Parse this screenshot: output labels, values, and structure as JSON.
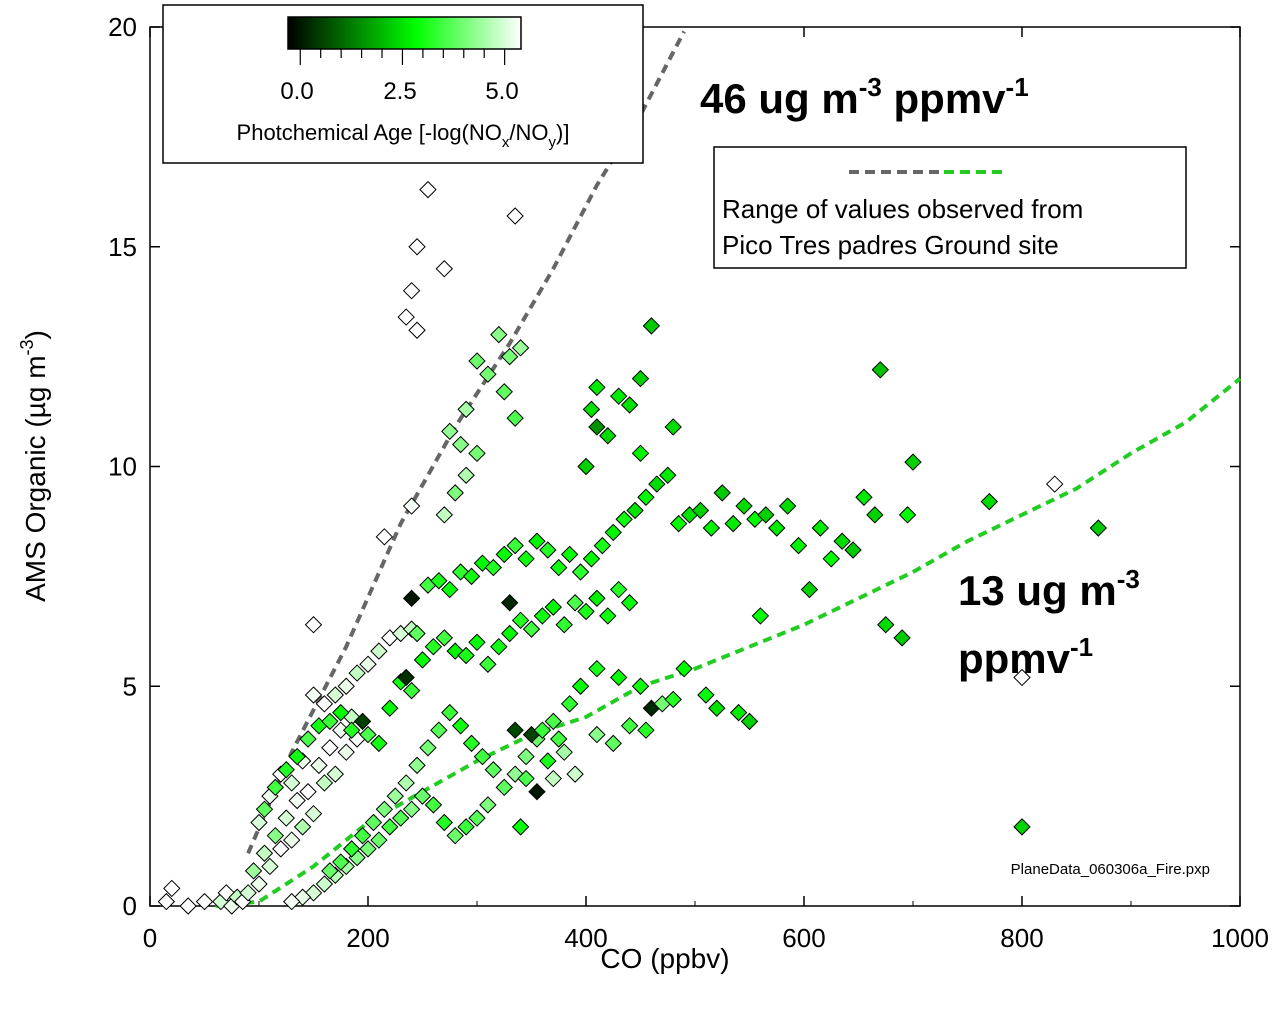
{
  "chart_data": {
    "type": "scatter",
    "xlabel": "CO (ppbv)",
    "ylabel": "AMS Organic (µg m-3)",
    "ylabel_parts": {
      "base": "AMS Organic (µg m",
      "sup": "-3",
      "end": ")"
    },
    "xlim": [
      0,
      1000
    ],
    "ylim": [
      0,
      20
    ],
    "x_ticks": [
      "0",
      "200",
      "400",
      "600",
      "800",
      "1000"
    ],
    "y_ticks": [
      "0",
      "5",
      "10",
      "15",
      "20"
    ],
    "grid": false,
    "colorbar": {
      "title": "Photchemical Age [-log(NOx/NOy)]",
      "title_parts": {
        "a": "Photchemical Age [-log(NO",
        "sub1": "x",
        "b": "/NO",
        "sub2": "y",
        "c": ")]"
      },
      "ticks": [
        "0.0",
        "2.5",
        "5.0"
      ],
      "range": [
        -0.3,
        5.4
      ],
      "colors": [
        "#000000",
        "#00a000",
        "#00ff00",
        "#ffffff"
      ]
    },
    "legend": {
      "placement": "top-right",
      "line1": "Range of values observed from",
      "line2": "Pico Tres padres Ground site"
    },
    "annotations": {
      "upper": {
        "main": "46 ug m",
        "sup1": "-3",
        "mid": " ppmv",
        "sup2": "-1"
      },
      "lower_line1": {
        "main": "13 ug m",
        "sup": "-3"
      },
      "lower_line2": {
        "main": "ppmv",
        "sup": "-1"
      },
      "file_note": "PlaneData_060306a_Fire.pxp"
    },
    "lines": [
      {
        "name": "upper range",
        "color": "#666666",
        "x": [
          90,
          130,
          180,
          230,
          280,
          330,
          370,
          410,
          450,
          490
        ],
        "y": [
          1.2,
          3.5,
          5.9,
          8.7,
          10.9,
          12.8,
          14.5,
          16.4,
          18.0,
          19.9
        ]
      },
      {
        "name": "lower range",
        "color": "#22cc22",
        "x": [
          60,
          100,
          150,
          200,
          250,
          300,
          350,
          400,
          450,
          500,
          550,
          600,
          650,
          700,
          750,
          800,
          850,
          900,
          950,
          1000
        ],
        "y": [
          0.0,
          0.1,
          0.9,
          1.9,
          2.6,
          3.3,
          3.9,
          4.3,
          5.0,
          5.4,
          5.9,
          6.4,
          7.0,
          7.6,
          8.3,
          8.9,
          9.5,
          10.3,
          11.0,
          12.0
        ]
      }
    ],
    "points": [
      [
        15,
        0.1,
        5.4
      ],
      [
        20,
        0.4,
        5.4
      ],
      [
        35,
        0.0,
        5.4
      ],
      [
        50,
        0.1,
        5.4
      ],
      [
        65,
        0.1,
        5.0
      ],
      [
        70,
        0.3,
        5.4
      ],
      [
        75,
        0.0,
        5.2
      ],
      [
        80,
        0.2,
        4.8
      ],
      [
        85,
        0.1,
        5.4
      ],
      [
        90,
        0.3,
        5.0
      ],
      [
        95,
        0.8,
        4.4
      ],
      [
        100,
        0.5,
        5.2
      ],
      [
        105,
        1.2,
        4.8
      ],
      [
        110,
        0.9,
        5.0
      ],
      [
        115,
        1.6,
        4.2
      ],
      [
        120,
        1.3,
        5.4
      ],
      [
        125,
        2.0,
        5.0
      ],
      [
        130,
        1.5,
        5.2
      ],
      [
        135,
        2.4,
        5.3
      ],
      [
        140,
        1.8,
        4.6
      ],
      [
        145,
        2.6,
        5.4
      ],
      [
        150,
        2.1,
        5.0
      ],
      [
        155,
        3.2,
        5.2
      ],
      [
        160,
        2.8,
        4.8
      ],
      [
        165,
        3.6,
        5.4
      ],
      [
        170,
        3.0,
        5.0
      ],
      [
        175,
        4.0,
        5.3
      ],
      [
        180,
        3.5,
        5.2
      ],
      [
        185,
        4.3,
        4.8
      ],
      [
        190,
        3.8,
        5.4
      ],
      [
        100,
        1.9,
        5.0
      ],
      [
        110,
        2.5,
        5.2
      ],
      [
        120,
        3.0,
        5.4
      ],
      [
        130,
        2.8,
        5.0
      ],
      [
        140,
        3.3,
        5.2
      ],
      [
        150,
        4.8,
        5.3
      ],
      [
        160,
        4.6,
        5.4
      ],
      [
        170,
        4.8,
        5.0
      ],
      [
        180,
        5.0,
        5.2
      ],
      [
        190,
        5.3,
        4.8
      ],
      [
        200,
        5.5,
        5.2
      ],
      [
        210,
        5.8,
        4.9
      ],
      [
        220,
        6.1,
        5.4
      ],
      [
        230,
        6.2,
        5.0
      ],
      [
        240,
        6.3,
        4.8
      ],
      [
        150,
        6.4,
        5.4
      ],
      [
        215,
        8.4,
        5.4
      ],
      [
        240,
        9.1,
        5.3
      ],
      [
        235,
        13.4,
        5.4
      ],
      [
        240,
        14.0,
        5.4
      ],
      [
        245,
        15.0,
        5.4
      ],
      [
        255,
        16.3,
        5.4
      ],
      [
        270,
        14.5,
        5.4
      ],
      [
        245,
        13.1,
        5.4
      ],
      [
        105,
        2.2,
        3.8
      ],
      [
        115,
        2.7,
        3.5
      ],
      [
        125,
        3.1,
        3.2
      ],
      [
        135,
        3.4,
        3.0
      ],
      [
        145,
        3.8,
        3.6
      ],
      [
        155,
        4.1,
        3.0
      ],
      [
        165,
        4.2,
        3.4
      ],
      [
        175,
        4.4,
        2.8
      ],
      [
        185,
        4.0,
        3.2
      ],
      [
        195,
        4.2,
        0.5
      ],
      [
        200,
        3.9,
        3.6
      ],
      [
        210,
        3.7,
        3.0
      ],
      [
        220,
        4.5,
        2.8
      ],
      [
        230,
        5.1,
        3.0
      ],
      [
        235,
        5.2,
        0.3
      ],
      [
        240,
        4.9,
        3.4
      ],
      [
        250,
        5.6,
        2.9
      ],
      [
        260,
        5.9,
        3.2
      ],
      [
        270,
        6.1,
        3.5
      ],
      [
        280,
        5.8,
        2.7
      ],
      [
        290,
        5.7,
        3.1
      ],
      [
        300,
        6.0,
        2.9
      ],
      [
        310,
        5.5,
        3.4
      ],
      [
        320,
        5.9,
        3.0
      ],
      [
        330,
        6.2,
        2.8
      ],
      [
        340,
        6.5,
        3.2
      ],
      [
        350,
        6.3,
        3.5
      ],
      [
        360,
        6.6,
        3.0
      ],
      [
        370,
        6.8,
        2.8
      ],
      [
        380,
        6.4,
        3.3
      ],
      [
        390,
        6.9,
        3.6
      ],
      [
        400,
        6.7,
        3.1
      ],
      [
        410,
        7.0,
        2.7
      ],
      [
        420,
        6.6,
        3.0
      ],
      [
        430,
        7.2,
        3.2
      ],
      [
        440,
        6.9,
        2.9
      ],
      [
        240,
        7.0,
        0.0
      ],
      [
        330,
        6.9,
        0.2
      ],
      [
        245,
        6.2,
        3.8
      ],
      [
        255,
        7.3,
        3.5
      ],
      [
        265,
        7.4,
        3.1
      ],
      [
        275,
        7.2,
        2.9
      ],
      [
        285,
        7.6,
        3.3
      ],
      [
        295,
        7.5,
        3.0
      ],
      [
        305,
        7.8,
        2.8
      ],
      [
        315,
        7.7,
        3.2
      ],
      [
        325,
        8.0,
        2.9
      ],
      [
        335,
        8.2,
        3.4
      ],
      [
        345,
        7.9,
        3.0
      ],
      [
        355,
        8.3,
        2.7
      ],
      [
        365,
        8.1,
        3.2
      ],
      [
        375,
        7.7,
        3.0
      ],
      [
        385,
        8.0,
        2.9
      ],
      [
        395,
        7.6,
        3.3
      ],
      [
        405,
        7.9,
        2.8
      ],
      [
        415,
        8.2,
        3.1
      ],
      [
        425,
        8.5,
        2.7
      ],
      [
        435,
        8.8,
        3.0
      ],
      [
        445,
        9.0,
        2.5
      ],
      [
        455,
        9.3,
        2.8
      ],
      [
        465,
        9.6,
        2.4
      ],
      [
        475,
        9.8,
        2.6
      ],
      [
        485,
        8.7,
        2.8
      ],
      [
        495,
        8.9,
        2.5
      ],
      [
        505,
        9.0,
        2.3
      ],
      [
        515,
        8.6,
        2.7
      ],
      [
        525,
        9.4,
        2.2
      ],
      [
        535,
        8.7,
        2.6
      ],
      [
        545,
        9.1,
        2.4
      ],
      [
        555,
        8.8,
        2.8
      ],
      [
        565,
        8.9,
        2.3
      ],
      [
        575,
        8.6,
        2.6
      ],
      [
        585,
        9.1,
        2.4
      ],
      [
        595,
        8.2,
        2.7
      ],
      [
        605,
        7.2,
        2.3
      ],
      [
        615,
        8.6,
        2.6
      ],
      [
        625,
        7.9,
        2.8
      ],
      [
        635,
        8.3,
        2.4
      ],
      [
        645,
        8.1,
        2.2
      ],
      [
        655,
        9.3,
        2.6
      ],
      [
        665,
        8.9,
        2.3
      ],
      [
        670,
        12.2,
        2.1
      ],
      [
        675,
        6.4,
        2.4
      ],
      [
        690,
        6.1,
        2.2
      ],
      [
        695,
        8.9,
        2.8
      ],
      [
        700,
        10.1,
        2.3
      ],
      [
        770,
        9.2,
        2.4
      ],
      [
        800,
        5.2,
        5.4
      ],
      [
        800,
        1.8,
        2.3
      ],
      [
        830,
        9.6,
        5.4
      ],
      [
        870,
        8.6,
        2.2
      ],
      [
        460,
        13.2,
        2.2
      ],
      [
        405,
        11.3,
        2.5
      ],
      [
        410,
        11.8,
        2.6
      ],
      [
        420,
        10.7,
        2.4
      ],
      [
        440,
        11.4,
        2.5
      ],
      [
        450,
        12.0,
        2.3
      ],
      [
        480,
        10.9,
        2.4
      ],
      [
        410,
        10.9,
        1.5
      ],
      [
        430,
        11.6,
        2.6
      ],
      [
        400,
        10.0,
        2.3
      ],
      [
        450,
        10.3,
        2.7
      ],
      [
        320,
        13.0,
        4.2
      ],
      [
        330,
        12.5,
        4.0
      ],
      [
        340,
        12.7,
        4.4
      ],
      [
        325,
        11.7,
        3.8
      ],
      [
        335,
        11.1,
        3.6
      ],
      [
        310,
        12.1,
        4.0
      ],
      [
        300,
        12.4,
        3.9
      ],
      [
        290,
        11.3,
        4.5
      ],
      [
        285,
        10.5,
        4.2
      ],
      [
        300,
        10.3,
        4.0
      ],
      [
        275,
        10.8,
        4.3
      ],
      [
        290,
        9.8,
        4.6
      ],
      [
        280,
        9.4,
        4.1
      ],
      [
        270,
        8.9,
        4.8
      ],
      [
        335,
        15.7,
        5.4
      ],
      [
        370,
        2.9,
        4.8
      ],
      [
        380,
        3.5,
        4.5
      ],
      [
        390,
        3.0,
        4.9
      ],
      [
        410,
        3.9,
        4.2
      ],
      [
        425,
        3.7,
        3.8
      ],
      [
        440,
        4.1,
        3.5
      ],
      [
        455,
        4.0,
        3.2
      ],
      [
        460,
        4.5,
        0.2
      ],
      [
        470,
        4.6,
        4.0
      ],
      [
        480,
        4.7,
        3.2
      ],
      [
        490,
        5.4,
        2.8
      ],
      [
        510,
        4.8,
        2.9
      ],
      [
        520,
        4.5,
        2.5
      ],
      [
        540,
        4.4,
        2.6
      ],
      [
        550,
        4.2,
        2.3
      ],
      [
        560,
        6.6,
        2.9
      ],
      [
        450,
        5.0,
        3.0
      ],
      [
        430,
        5.2,
        2.8
      ],
      [
        410,
        5.4,
        3.1
      ],
      [
        395,
        5.0,
        2.9
      ],
      [
        385,
        4.6,
        3.3
      ],
      [
        370,
        4.2,
        3.6
      ],
      [
        355,
        3.8,
        3.9
      ],
      [
        345,
        3.4,
        4.1
      ],
      [
        335,
        3.0,
        4.3
      ],
      [
        325,
        2.7,
        3.8
      ],
      [
        310,
        2.3,
        4.1
      ],
      [
        300,
        2.0,
        3.7
      ],
      [
        290,
        1.8,
        3.4
      ],
      [
        280,
        1.6,
        3.9
      ],
      [
        270,
        1.9,
        3.2
      ],
      [
        260,
        2.3,
        3.5
      ],
      [
        250,
        2.5,
        3.9
      ],
      [
        240,
        2.2,
        4.2
      ],
      [
        230,
        2.0,
        3.7
      ],
      [
        220,
        1.8,
        3.5
      ],
      [
        210,
        1.5,
        3.9
      ],
      [
        200,
        1.3,
        4.0
      ],
      [
        190,
        1.1,
        4.2
      ],
      [
        180,
        0.9,
        4.5
      ],
      [
        170,
        0.7,
        4.7
      ],
      [
        160,
        0.5,
        4.9
      ],
      [
        150,
        0.3,
        5.0
      ],
      [
        140,
        0.2,
        5.2
      ],
      [
        130,
        0.1,
        5.3
      ],
      [
        340,
        1.8,
        2.9
      ],
      [
        355,
        2.6,
        0.0
      ],
      [
        350,
        3.9,
        0.5
      ],
      [
        360,
        4.0,
        3.4
      ],
      [
        365,
        3.3,
        3.1
      ],
      [
        375,
        3.8,
        3.5
      ],
      [
        345,
        2.9,
        3.6
      ],
      [
        335,
        4.0,
        0.6
      ],
      [
        315,
        3.1,
        3.8
      ],
      [
        305,
        3.4,
        3.5
      ],
      [
        295,
        3.7,
        3.2
      ],
      [
        285,
        4.1,
        3.0
      ],
      [
        275,
        4.4,
        3.4
      ],
      [
        265,
        4.0,
        3.7
      ],
      [
        255,
        3.6,
        4.0
      ],
      [
        245,
        3.2,
        4.3
      ],
      [
        235,
        2.8,
        4.6
      ],
      [
        225,
        2.5,
        4.4
      ],
      [
        215,
        2.2,
        4.1
      ],
      [
        205,
        1.9,
        3.8
      ],
      [
        195,
        1.6,
        3.5
      ],
      [
        185,
        1.3,
        3.3
      ],
      [
        175,
        1.0,
        3.6
      ],
      [
        165,
        0.8,
        3.9
      ]
    ]
  }
}
